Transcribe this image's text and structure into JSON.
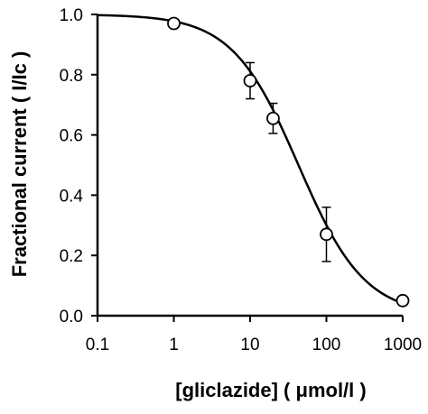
{
  "chart_data": {
    "type": "scatter",
    "title": "",
    "xlabel": "[gliclazide]  ( μmol/l )",
    "ylabel": "Fractional current ( I/Ic )",
    "xscale": "log",
    "xlim": [
      0.1,
      1000
    ],
    "ylim": [
      0.0,
      1.0
    ],
    "x_ticks": [
      "0.1",
      "1",
      "10",
      "100",
      "1000"
    ],
    "y_ticks": [
      "0.0",
      "0.2",
      "0.4",
      "0.6",
      "0.8",
      "1.0"
    ],
    "grid": false,
    "legend": "none",
    "series": [
      {
        "x": [
          1,
          10,
          20,
          100,
          1000
        ],
        "y": [
          0.97,
          0.78,
          0.655,
          0.27,
          0.05
        ],
        "error": [
          null,
          0.06,
          0.05,
          0.09,
          null
        ],
        "marker": "open-circle"
      }
    ],
    "fit": {
      "type": "hill",
      "ic50": 43,
      "n": 1.0,
      "color": "#000000"
    }
  }
}
